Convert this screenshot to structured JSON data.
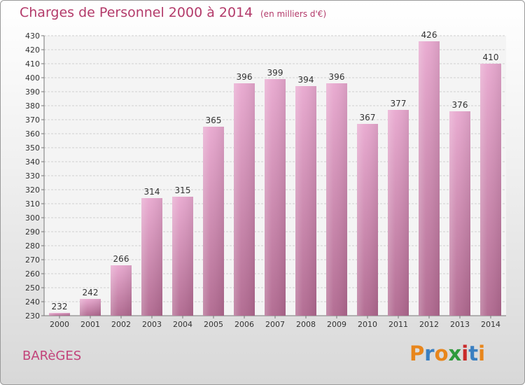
{
  "header": {
    "title": "Charges de Personnel 2000 à 2014",
    "subtitle": "(en milliers d'€)"
  },
  "footer": {
    "place": "BARèGES",
    "logo": "Proxiti"
  },
  "colors": {
    "title": "#b33a6a",
    "bar_light": "#e8a8cf",
    "bar_dark": "#b0688f",
    "logo_letters": [
      "#e8861c",
      "#3a7fc1",
      "#e8861c",
      "#2e9a3c",
      "#c92a2a",
      "#3a7fc1",
      "#e8861c"
    ]
  },
  "chart_data": {
    "type": "bar",
    "title": "Charges de Personnel 2000 à 2014",
    "subtitle": "(en milliers d'€)",
    "categories": [
      "2000",
      "2001",
      "2002",
      "2003",
      "2004",
      "2005",
      "2006",
      "2007",
      "2008",
      "2009",
      "2010",
      "2011",
      "2012",
      "2013",
      "2014"
    ],
    "values": [
      232,
      242,
      266,
      314,
      315,
      365,
      396,
      399,
      394,
      396,
      367,
      377,
      426,
      376,
      410
    ],
    "ylim": [
      230,
      430
    ],
    "ytick_step": 10,
    "grid": true,
    "data_labels": true
  }
}
